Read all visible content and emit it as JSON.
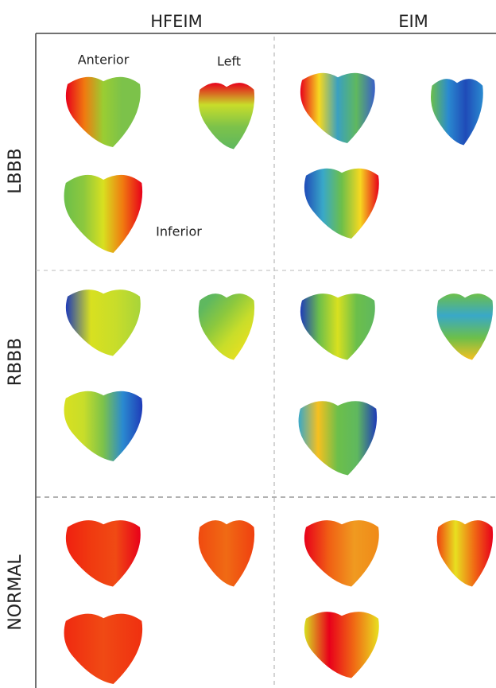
{
  "columns": [
    "HFEIM",
    "EIM"
  ],
  "rows": [
    "LBBB",
    "RBBB",
    "NORMAL"
  ],
  "view_labels": {
    "anterior": "Anterior",
    "left": "Left",
    "inferior": "Inferior"
  }
}
